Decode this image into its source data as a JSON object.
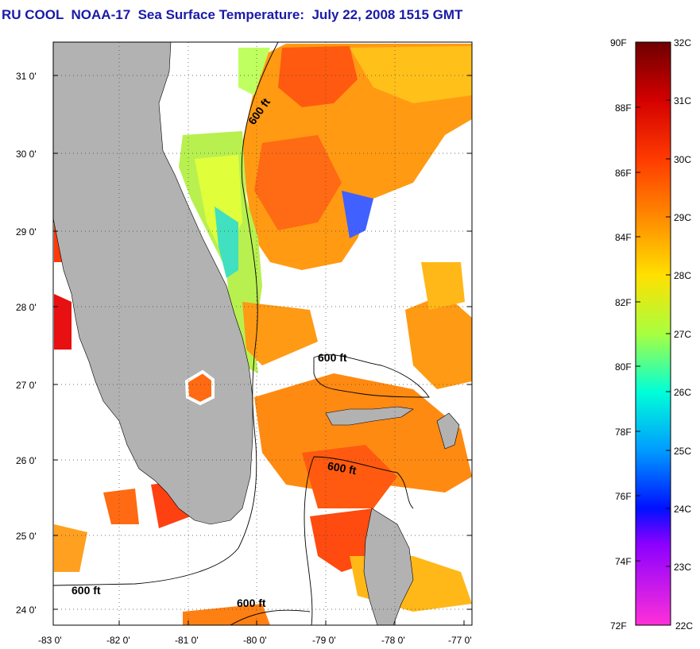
{
  "title": "RU COOL  NOAA-17  Sea Surface Temperature:  July 22, 2008 1515 GMT",
  "map": {
    "longitude_ticks": [
      "-83 0'",
      "-82 0'",
      "-81 0'",
      "-80 0'",
      "-79 0'",
      "-78 0'",
      "-77 0'"
    ],
    "latitude_ticks": [
      "31 0'",
      "30 0'",
      "29 0'",
      "28 0'",
      "27 0'",
      "26 0'",
      "25 0'",
      "24 0'"
    ],
    "lon_range": [
      -83,
      -77
    ],
    "lat_range": [
      23.75,
      31.4
    ],
    "contour_labels": [
      "600 ft",
      "600 ft",
      "600 ft",
      "600 ft",
      "600 ft"
    ],
    "land_color": "#b2b2b2",
    "background_color": "#ffffff",
    "grid": "dotted"
  },
  "color_scale": {
    "fahrenheit_labels": [
      "90F",
      "88F",
      "86F",
      "84F",
      "82F",
      "80F",
      "78F",
      "76F",
      "74F",
      "72F"
    ],
    "celsius_labels": [
      "32C",
      "31C",
      "30C",
      "29C",
      "28C",
      "27C",
      "26C",
      "25C",
      "24C",
      "23C",
      "22C"
    ],
    "range_c": [
      22,
      32
    ],
    "range_f": [
      72,
      90
    ]
  }
}
